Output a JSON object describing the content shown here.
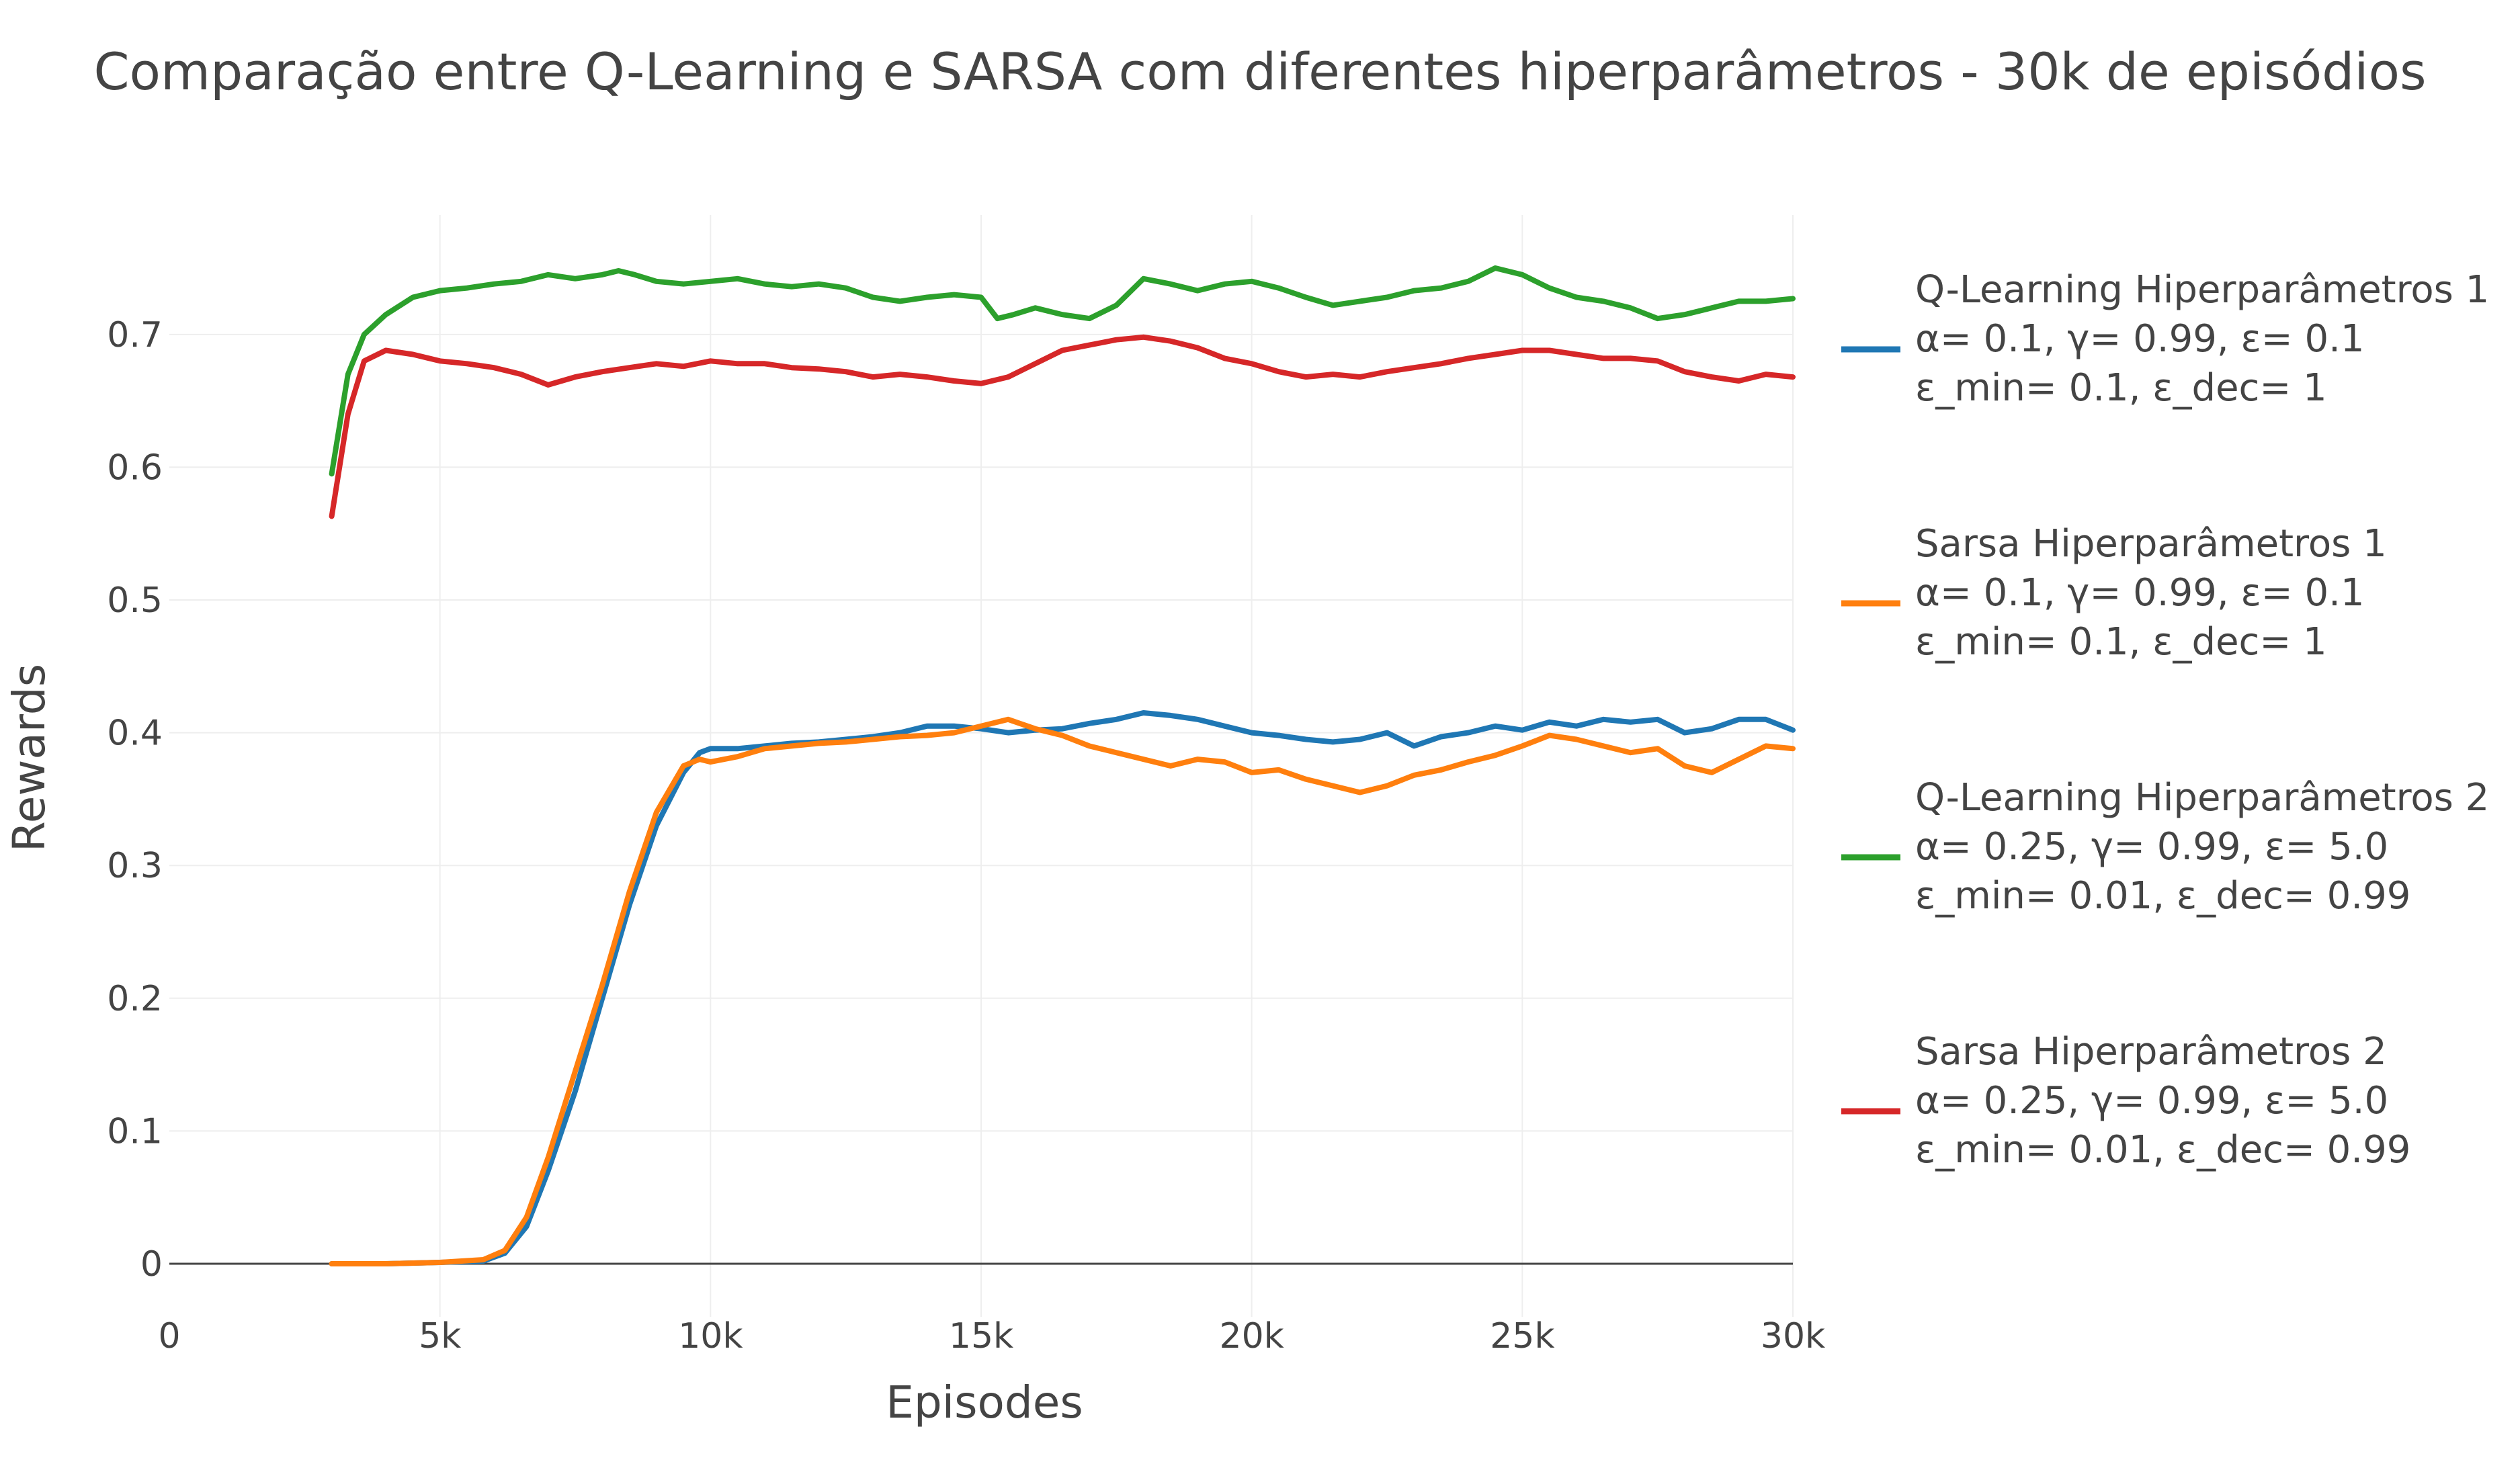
{
  "chart_data": {
    "type": "line",
    "title": "Comparação entre Q-Learning e SARSA com diferentes hiperparâmetros - 30k de episódios",
    "xlabel": "Episodes",
    "ylabel": "Rewards",
    "xlim": [
      0,
      30000
    ],
    "ylim": [
      -0.04,
      0.79
    ],
    "grid": true,
    "legend_position": "right",
    "x_ticks": [
      {
        "value": 0,
        "label": "0"
      },
      {
        "value": 5000,
        "label": "5k"
      },
      {
        "value": 10000,
        "label": "10k"
      },
      {
        "value": 15000,
        "label": "15k"
      },
      {
        "value": 20000,
        "label": "20k"
      },
      {
        "value": 25000,
        "label": "25k"
      },
      {
        "value": 30000,
        "label": "30k"
      }
    ],
    "y_ticks": [
      {
        "value": 0,
        "label": "0"
      },
      {
        "value": 0.1,
        "label": "0.1"
      },
      {
        "value": 0.2,
        "label": "0.2"
      },
      {
        "value": 0.3,
        "label": "0.3"
      },
      {
        "value": 0.4,
        "label": "0.4"
      },
      {
        "value": 0.5,
        "label": "0.5"
      },
      {
        "value": 0.6,
        "label": "0.6"
      },
      {
        "value": 0.7,
        "label": "0.7"
      }
    ],
    "series": [
      {
        "legend": [
          "Q-Learning Hiperparâmetros 1",
          "α= 0.1, γ= 0.99, ε= 0.1",
          "ε_min= 0.1, ε_dec= 1"
        ],
        "color": "#1f77b4",
        "x": [
          3000,
          4000,
          5000,
          5800,
          6200,
          6600,
          7000,
          7500,
          8000,
          8500,
          9000,
          9500,
          9800,
          10000,
          10500,
          11000,
          11500,
          12000,
          12500,
          13000,
          13500,
          14000,
          14500,
          15000,
          15500,
          16000,
          16500,
          17000,
          17500,
          18000,
          18500,
          19000,
          19500,
          20000,
          20500,
          21000,
          21500,
          22000,
          22500,
          23000,
          23500,
          24000,
          24500,
          25000,
          25500,
          26000,
          26500,
          27000,
          27500,
          28000,
          28500,
          29000,
          29500,
          30000
        ],
        "y": [
          0,
          0,
          0.001,
          0.002,
          0.008,
          0.028,
          0.07,
          0.13,
          0.2,
          0.27,
          0.33,
          0.37,
          0.385,
          0.388,
          0.388,
          0.39,
          0.392,
          0.393,
          0.395,
          0.397,
          0.4,
          0.405,
          0.405,
          0.403,
          0.4,
          0.402,
          0.403,
          0.407,
          0.41,
          0.415,
          0.413,
          0.41,
          0.405,
          0.4,
          0.398,
          0.395,
          0.393,
          0.395,
          0.4,
          0.39,
          0.397,
          0.4,
          0.405,
          0.402,
          0.408,
          0.405,
          0.41,
          0.408,
          0.41,
          0.4,
          0.403,
          0.41,
          0.41,
          0.402
        ]
      },
      {
        "legend": [
          "Sarsa Hiperparâmetros 1",
          "α= 0.1, γ= 0.99, ε= 0.1",
          "ε_min= 0.1, ε_dec= 1"
        ],
        "color": "#ff7f0e",
        "x": [
          3000,
          4000,
          5000,
          5800,
          6200,
          6600,
          7000,
          7500,
          8000,
          8500,
          9000,
          9500,
          9800,
          10000,
          10500,
          11000,
          11500,
          12000,
          12500,
          13000,
          13500,
          14000,
          14500,
          15000,
          15500,
          16000,
          16500,
          17000,
          17500,
          18000,
          18500,
          19000,
          19500,
          20000,
          20500,
          21000,
          21500,
          22000,
          22500,
          23000,
          23500,
          24000,
          24500,
          25000,
          25500,
          26000,
          26500,
          27000,
          27500,
          28000,
          28500,
          29000,
          29500,
          30000
        ],
        "y": [
          0,
          0,
          0.001,
          0.003,
          0.01,
          0.035,
          0.08,
          0.145,
          0.21,
          0.28,
          0.34,
          0.375,
          0.38,
          0.378,
          0.382,
          0.388,
          0.39,
          0.392,
          0.393,
          0.395,
          0.397,
          0.398,
          0.4,
          0.405,
          0.41,
          0.403,
          0.398,
          0.39,
          0.385,
          0.38,
          0.375,
          0.38,
          0.378,
          0.37,
          0.372,
          0.365,
          0.36,
          0.355,
          0.36,
          0.368,
          0.372,
          0.378,
          0.383,
          0.39,
          0.398,
          0.395,
          0.39,
          0.385,
          0.388,
          0.375,
          0.37,
          0.38,
          0.39,
          0.388
        ]
      },
      {
        "legend": [
          "Q-Learning Hiperparâmetros 2",
          "α= 0.25, γ= 0.99, ε= 5.0",
          "ε_min= 0.01, ε_dec= 0.99"
        ],
        "color": "#2ca02c",
        "x": [
          3000,
          3300,
          3600,
          4000,
          4500,
          5000,
          5500,
          6000,
          6500,
          7000,
          7500,
          8000,
          8300,
          8600,
          9000,
          9500,
          10000,
          10500,
          11000,
          11500,
          12000,
          12500,
          13000,
          13500,
          14000,
          14500,
          15000,
          15300,
          15600,
          16000,
          16500,
          17000,
          17500,
          18000,
          18500,
          19000,
          19500,
          20000,
          20500,
          21000,
          21500,
          22000,
          22500,
          23000,
          23500,
          24000,
          24500,
          25000,
          25500,
          26000,
          26500,
          27000,
          27500,
          28000,
          28500,
          29000,
          29500,
          30000
        ],
        "y": [
          0.595,
          0.67,
          0.7,
          0.715,
          0.728,
          0.733,
          0.735,
          0.738,
          0.74,
          0.745,
          0.742,
          0.745,
          0.748,
          0.745,
          0.74,
          0.738,
          0.74,
          0.742,
          0.738,
          0.736,
          0.738,
          0.735,
          0.728,
          0.725,
          0.728,
          0.73,
          0.728,
          0.712,
          0.715,
          0.72,
          0.715,
          0.712,
          0.722,
          0.742,
          0.738,
          0.733,
          0.738,
          0.74,
          0.735,
          0.728,
          0.722,
          0.725,
          0.728,
          0.733,
          0.735,
          0.74,
          0.75,
          0.745,
          0.735,
          0.728,
          0.725,
          0.72,
          0.712,
          0.715,
          0.72,
          0.725,
          0.725,
          0.727
        ]
      },
      {
        "legend": [
          "Sarsa Hiperparâmetros 2",
          "α= 0.25, γ= 0.99, ε= 5.0",
          "ε_min= 0.01, ε_dec= 0.99"
        ],
        "color": "#d62728",
        "x": [
          3000,
          3300,
          3600,
          4000,
          4500,
          5000,
          5500,
          6000,
          6500,
          7000,
          7500,
          8000,
          8500,
          9000,
          9500,
          10000,
          10500,
          11000,
          11500,
          12000,
          12500,
          13000,
          13500,
          14000,
          14500,
          15000,
          15500,
          16000,
          16500,
          17000,
          17500,
          18000,
          18500,
          19000,
          19500,
          20000,
          20500,
          21000,
          21500,
          22000,
          22500,
          23000,
          23500,
          24000,
          24500,
          25000,
          25500,
          26000,
          26500,
          27000,
          27500,
          28000,
          28500,
          29000,
          29500,
          30000
        ],
        "y": [
          0.563,
          0.64,
          0.68,
          0.688,
          0.685,
          0.68,
          0.678,
          0.675,
          0.67,
          0.662,
          0.668,
          0.672,
          0.675,
          0.678,
          0.676,
          0.68,
          0.678,
          0.678,
          0.675,
          0.674,
          0.672,
          0.668,
          0.67,
          0.668,
          0.665,
          0.663,
          0.668,
          0.678,
          0.688,
          0.692,
          0.696,
          0.698,
          0.695,
          0.69,
          0.682,
          0.678,
          0.672,
          0.668,
          0.67,
          0.668,
          0.672,
          0.675,
          0.678,
          0.682,
          0.685,
          0.688,
          0.688,
          0.685,
          0.682,
          0.682,
          0.68,
          0.672,
          0.668,
          0.665,
          0.67,
          0.668
        ]
      }
    ]
  }
}
